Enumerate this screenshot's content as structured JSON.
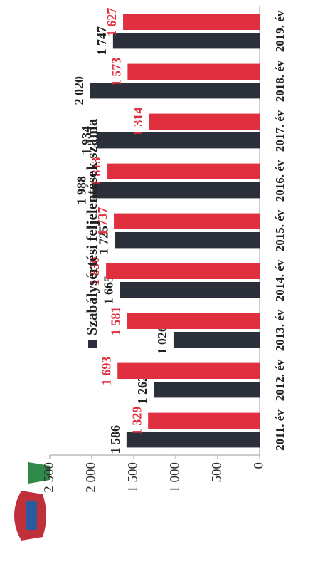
{
  "chart_data": {
    "type": "bar",
    "categories": [
      "2011. év",
      "2012. év",
      "2013. év",
      "2014. év",
      "2015. év",
      "2016. év",
      "2017. év",
      "2018. év",
      "2019. év"
    ],
    "series": [
      {
        "name": "Szabálysértési feljelentések száma",
        "color": "#2b2f3a",
        "values": [
          1586,
          1262,
          1026,
          1665,
          1725,
          1988,
          1934,
          2020,
          1747
        ],
        "value_labels": [
          "1 586",
          "1 262",
          "1 026",
          "1 665",
          "1 725",
          "1 988",
          "1 934",
          "2 020",
          "1 747"
        ]
      },
      {
        "color": "#e0303f",
        "values": [
          1329,
          1693,
          1581,
          1830,
          1737,
          1813,
          1314,
          1573,
          1627
        ],
        "value_labels": [
          "1 329",
          "1 693",
          "1 581",
          "1 830",
          "1 737",
          "1 813",
          "1 314",
          "1 573",
          "1 627"
        ]
      }
    ],
    "ylim": [
      0,
      2500
    ],
    "yticks": [
      0,
      500,
      {
        "value": 1000,
        "label": "1 000"
      },
      {
        "value": 1500,
        "label": "1 500"
      },
      {
        "value": 2000,
        "label": "2 000"
      },
      {
        "value": 2500,
        "label": "2 500"
      }
    ],
    "grid": false
  }
}
